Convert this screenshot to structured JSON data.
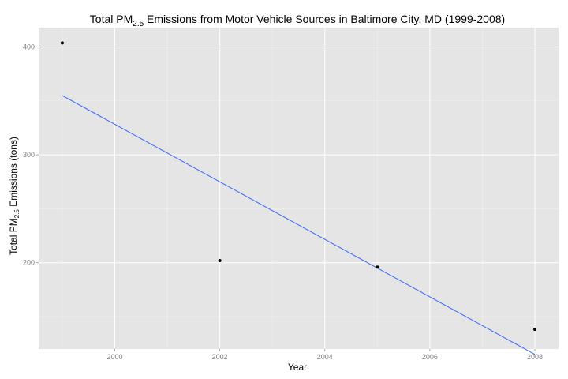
{
  "chart_data": {
    "type": "scatter",
    "title": {
      "prefix": "Total PM",
      "subscript": "2.5",
      "suffix": " Emissions from Motor Vehicle Sources in Baltimore City, MD (1999-2008)"
    },
    "xlabel": "Year",
    "ylabel": {
      "prefix": "Total PM",
      "subscript": "2.5",
      "suffix": " Emissions (tons)"
    },
    "x": [
      1999,
      2002,
      2005,
      2008
    ],
    "y": [
      403.8,
      202.0,
      196.0,
      138.2
    ],
    "trend_line": {
      "x": [
        1999,
        2008
      ],
      "y": [
        355.0,
        115.0
      ],
      "color": "#3366ff"
    },
    "xlim": [
      1998.55,
      2008.45
    ],
    "ylim": [
      120,
      418
    ],
    "x_ticks": [
      2000,
      2002,
      2004,
      2006,
      2008
    ],
    "y_ticks": [
      200,
      300,
      400
    ],
    "grid": true,
    "legend": "none",
    "colors": {
      "panel": "#e5e5e5",
      "grid_major": "#ffffff",
      "point": "#000000"
    }
  }
}
